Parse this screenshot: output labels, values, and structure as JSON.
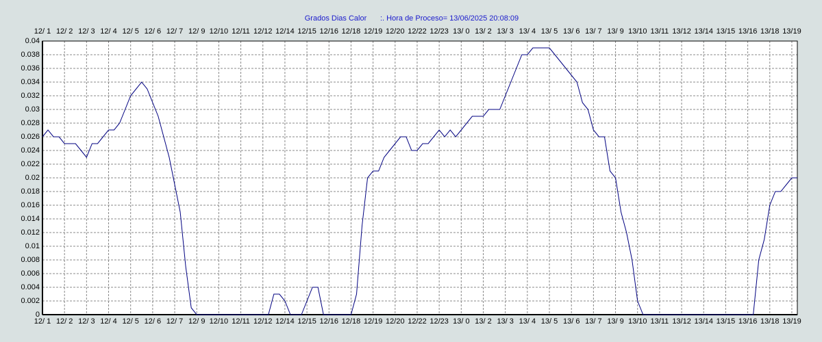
{
  "chart_data": {
    "type": "line",
    "title": "Grados Dias Calor",
    "subtitle": ":. Hora de Proceso= 13/06/2025 20:08:09",
    "color": "#000080",
    "grid": true,
    "categories": [
      "12/ 1",
      null,
      null,
      null,
      "12/ 2",
      null,
      null,
      null,
      "12/ 3",
      null,
      null,
      null,
      "12/ 4",
      null,
      null,
      null,
      "12/ 5",
      null,
      null,
      null,
      "12/ 6",
      null,
      null,
      null,
      "12/ 7",
      null,
      null,
      null,
      "12/ 9",
      null,
      null,
      null,
      "12/10",
      null,
      null,
      null,
      "12/11",
      null,
      null,
      null,
      "12/12",
      null,
      null,
      null,
      "12/14",
      null,
      null,
      null,
      "12/15",
      null,
      null,
      null,
      "12/16",
      null,
      null,
      null,
      "12/18",
      null,
      null,
      null,
      "12/19",
      null,
      null,
      null,
      "12/20",
      null,
      null,
      null,
      "12/22",
      null,
      null,
      null,
      "12/23",
      null,
      null,
      null,
      "13/ 0",
      null,
      null,
      null,
      "13/ 2",
      null,
      null,
      null,
      "13/ 3",
      null,
      null,
      null,
      "13/ 4",
      null,
      null,
      null,
      "13/ 5",
      null,
      null,
      null,
      "13/ 6",
      null,
      null,
      null,
      "13/ 7",
      null,
      null,
      null,
      "13/ 9",
      null,
      null,
      null,
      "13/10",
      null,
      null,
      null,
      "13/11",
      null,
      null,
      null,
      "13/12",
      null,
      null,
      null,
      "13/14",
      null,
      null,
      null,
      "13/15",
      null,
      null,
      null,
      "13/16",
      null,
      null,
      null,
      "13/18",
      null,
      null,
      null,
      "13/19",
      null
    ],
    "values": [
      0.026,
      0.027,
      0.026,
      0.026,
      0.025,
      0.025,
      0.025,
      0.024,
      0.023,
      0.025,
      0.025,
      0.026,
      0.027,
      0.027,
      0.028,
      0.03,
      0.032,
      0.033,
      0.034,
      0.033,
      0.031,
      0.029,
      0.026,
      0.023,
      0.019,
      0.015,
      0.007,
      0.001,
      0,
      0,
      0,
      0,
      0,
      0,
      0,
      0,
      0,
      0,
      0,
      0,
      0,
      0,
      0.003,
      0.003,
      0.002,
      0,
      0,
      0,
      0.002,
      0.004,
      0.004,
      0,
      0,
      0,
      0,
      0,
      0,
      0.003,
      0.013,
      0.02,
      0.021,
      0.021,
      0.023,
      0.024,
      0.025,
      0.026,
      0.026,
      0.024,
      0.024,
      0.025,
      0.025,
      0.026,
      0.027,
      0.026,
      0.027,
      0.026,
      0.027,
      0.028,
      0.029,
      0.029,
      0.029,
      0.03,
      0.03,
      0.03,
      0.032,
      0.034,
      0.036,
      0.038,
      0.038,
      0.039,
      0.039,
      0.039,
      0.039,
      0.038,
      0.037,
      0.036,
      0.035,
      0.034,
      0.031,
      0.03,
      0.027,
      0.026,
      0.026,
      0.021,
      0.02,
      0.015,
      0.012,
      0.008,
      0.002,
      0,
      0,
      0,
      0,
      0,
      0,
      0,
      0,
      0,
      0,
      0,
      0,
      0,
      0,
      0,
      0,
      0,
      0,
      0,
      0,
      0,
      0.008,
      0.011,
      0.016,
      0.018,
      0.018,
      0.019,
      0.02,
      0.02
    ],
    "ylim": [
      0,
      0.04
    ],
    "yticks": [
      0,
      0.002,
      0.004,
      0.006,
      0.008,
      0.01,
      0.012,
      0.014,
      0.016,
      0.018,
      0.02,
      0.022,
      0.024,
      0.026,
      0.028,
      0.03,
      0.032,
      0.034,
      0.036,
      0.038,
      0.04
    ]
  }
}
